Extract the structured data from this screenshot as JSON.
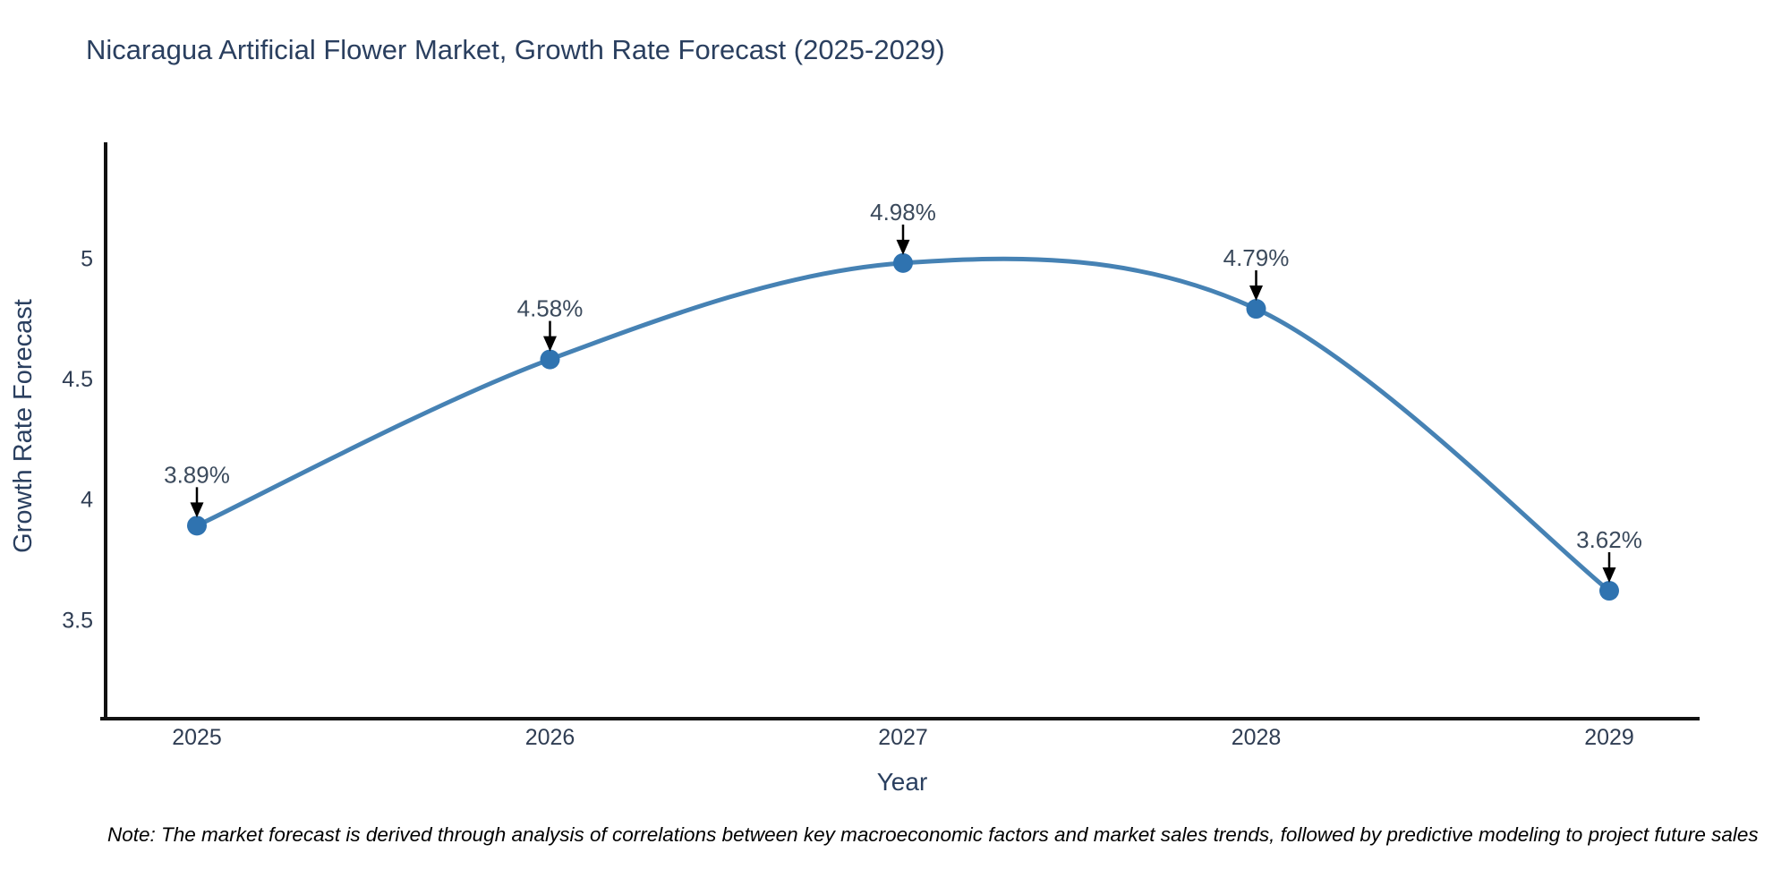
{
  "chart_data": {
    "type": "line",
    "title": "Nicaragua Artificial Flower Market, Growth Rate Forecast (2025-2029)",
    "xlabel": "Year",
    "ylabel": "Growth Rate Forecast",
    "categories": [
      "2025",
      "2026",
      "2027",
      "2028",
      "2029"
    ],
    "series": [
      {
        "name": "Growth Rate Forecast",
        "values": [
          3.89,
          4.58,
          4.98,
          4.79,
          3.62
        ]
      }
    ],
    "point_labels": [
      "3.89%",
      "4.58%",
      "4.98%",
      "4.79%",
      "3.62%"
    ],
    "yticks": [
      3.5,
      4,
      4.5,
      5
    ],
    "ylim": [
      3.089,
      5.481
    ],
    "grid": false,
    "legend": "none",
    "line_shape": "spline",
    "colors": {
      "line": "#4682b4",
      "marker": "#2f73b0",
      "annotation_text": "#3b4a5c",
      "annotation_arrow": "#000000",
      "title_text": "#2a3f5f",
      "tick_text": "#2f3d53",
      "axis_line": "#111111"
    },
    "note": "Note: The market forecast is derived through analysis of correlations between key macroeconomic factors and market sales trends, followed by predictive modeling to project future sales"
  }
}
